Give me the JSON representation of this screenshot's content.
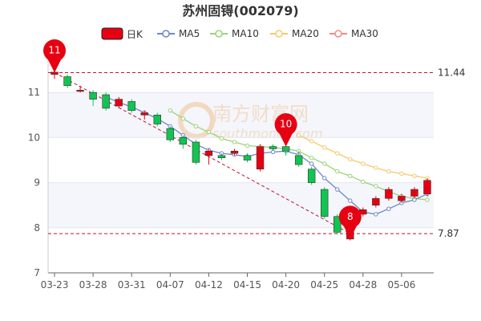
{
  "chart_data": {
    "type": "candlestick",
    "title": "苏州固锝(002079)",
    "legend": [
      {
        "name": "日K",
        "color": "#e60012",
        "kind": "box"
      },
      {
        "name": "MA5",
        "color": "#6f87c9",
        "kind": "line"
      },
      {
        "name": "MA10",
        "color": "#9ed07a",
        "kind": "line"
      },
      {
        "name": "MA20",
        "color": "#f5c96b",
        "kind": "line"
      },
      {
        "name": "MA30",
        "color": "#f08a8a",
        "kind": "line"
      }
    ],
    "y_ticks": [
      7,
      8,
      9,
      10,
      11
    ],
    "ylim": [
      7,
      12
    ],
    "x_ticks": [
      "03-23",
      "03-28",
      "03-31",
      "04-07",
      "04-12",
      "04-15",
      "04-20",
      "04-25",
      "04-28",
      "05-06"
    ],
    "x_tick_index": [
      0,
      3,
      6,
      9,
      12,
      15,
      18,
      21,
      24,
      27
    ],
    "candles": [
      {
        "o": 11.4,
        "c": 11.45,
        "h": 11.5,
        "l": 11.3
      },
      {
        "o": 11.35,
        "c": 11.15,
        "h": 11.4,
        "l": 11.1
      },
      {
        "o": 11.05,
        "c": 11.05,
        "h": 11.15,
        "l": 11.0
      },
      {
        "o": 11.0,
        "c": 10.85,
        "h": 11.05,
        "l": 10.7
      },
      {
        "o": 10.95,
        "c": 10.65,
        "h": 11.0,
        "l": 10.6
      },
      {
        "o": 10.7,
        "c": 10.85,
        "h": 10.9,
        "l": 10.65
      },
      {
        "o": 10.8,
        "c": 10.6,
        "h": 10.85,
        "l": 10.55
      },
      {
        "o": 10.5,
        "c": 10.55,
        "h": 10.6,
        "l": 10.4
      },
      {
        "o": 10.5,
        "c": 10.3,
        "h": 10.55,
        "l": 10.25
      },
      {
        "o": 10.2,
        "c": 9.95,
        "h": 10.25,
        "l": 9.9
      },
      {
        "o": 10.0,
        "c": 9.85,
        "h": 10.05,
        "l": 9.75
      },
      {
        "o": 9.9,
        "c": 9.45,
        "h": 9.95,
        "l": 9.4
      },
      {
        "o": 9.6,
        "c": 9.7,
        "h": 9.75,
        "l": 9.4
      },
      {
        "o": 9.6,
        "c": 9.55,
        "h": 9.65,
        "l": 9.5
      },
      {
        "o": 9.65,
        "c": 9.7,
        "h": 9.75,
        "l": 9.6
      },
      {
        "o": 9.6,
        "c": 9.5,
        "h": 9.65,
        "l": 9.45
      },
      {
        "o": 9.3,
        "c": 9.8,
        "h": 9.85,
        "l": 9.25
      },
      {
        "o": 9.8,
        "c": 9.75,
        "h": 9.85,
        "l": 9.7
      },
      {
        "o": 9.8,
        "c": 9.7,
        "h": 9.85,
        "l": 9.6
      },
      {
        "o": 9.6,
        "c": 9.4,
        "h": 9.7,
        "l": 9.35
      },
      {
        "o": 9.3,
        "c": 9.0,
        "h": 9.35,
        "l": 8.95
      },
      {
        "o": 8.85,
        "c": 8.25,
        "h": 8.9,
        "l": 8.2
      },
      {
        "o": 8.25,
        "c": 7.9,
        "h": 8.3,
        "l": 7.85
      },
      {
        "o": 7.75,
        "c": 8.05,
        "h": 8.1,
        "l": 7.72
      },
      {
        "o": 8.3,
        "c": 8.4,
        "h": 8.45,
        "l": 8.25
      },
      {
        "o": 8.5,
        "c": 8.65,
        "h": 8.7,
        "l": 8.45
      },
      {
        "o": 8.65,
        "c": 8.85,
        "h": 8.9,
        "l": 8.6
      },
      {
        "o": 8.6,
        "c": 8.7,
        "h": 8.75,
        "l": 8.55
      },
      {
        "o": 8.7,
        "c": 8.85,
        "h": 8.9,
        "l": 8.65
      },
      {
        "o": 8.75,
        "c": 9.05,
        "h": 9.1,
        "l": 8.7
      }
    ],
    "ma5": [
      null,
      null,
      null,
      null,
      10.9,
      10.78,
      10.68,
      10.55,
      10.42,
      10.25,
      10.05,
      9.85,
      9.72,
      9.65,
      9.62,
      9.58,
      9.65,
      9.68,
      9.7,
      9.62,
      9.42,
      9.1,
      8.85,
      8.6,
      8.35,
      8.3,
      8.42,
      8.55,
      8.62,
      8.75
    ],
    "ma10": [
      null,
      null,
      null,
      null,
      null,
      null,
      null,
      null,
      null,
      10.6,
      10.42,
      10.25,
      10.12,
      9.98,
      9.9,
      9.82,
      9.8,
      9.78,
      9.75,
      9.7,
      9.55,
      9.42,
      9.25,
      9.15,
      9.02,
      8.92,
      8.8,
      8.7,
      8.65,
      8.62
    ],
    "ma20": [
      null,
      null,
      null,
      null,
      null,
      null,
      null,
      null,
      null,
      null,
      null,
      null,
      null,
      null,
      null,
      null,
      null,
      null,
      null,
      10.05,
      9.92,
      9.78,
      9.65,
      9.52,
      9.42,
      9.33,
      9.25,
      9.2,
      9.15,
      9.1
    ],
    "ma30": [],
    "ref_lines": [
      {
        "label": "11.44",
        "value": 11.44
      },
      {
        "label": "7.87",
        "value": 7.87
      }
    ],
    "trend_line": {
      "from_index": 0,
      "from_value": 11.44,
      "to_index": 23,
      "to_value": 7.87
    },
    "pins": [
      {
        "label": "11",
        "index": 0,
        "value": 11.44
      },
      {
        "label": "10",
        "index": 18,
        "value": 9.8
      },
      {
        "label": "8",
        "index": 23,
        "value": 7.75
      }
    ],
    "up_color": "#e60012",
    "down_color": "#12c452",
    "watermark": {
      "main": "南方财富网",
      "sub": "southmoney.com"
    }
  }
}
